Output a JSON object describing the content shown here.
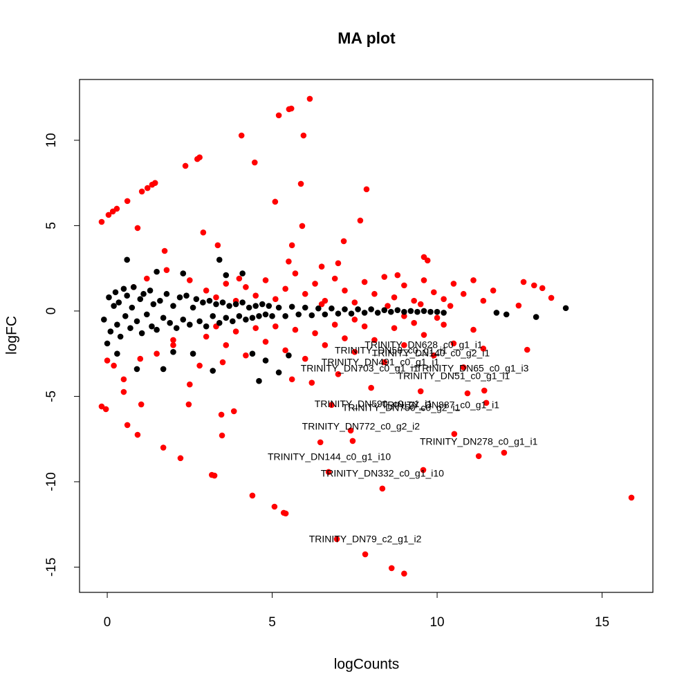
{
  "chart_data": {
    "type": "scatter",
    "title": "MA plot",
    "x_label": "logCounts",
    "y_label": "logFC",
    "xlim": [
      -0.84,
      16.54
    ],
    "ylim": [
      -16.48,
      13.56
    ],
    "xticks": [
      0,
      5,
      10,
      15
    ],
    "yticks": [
      -15,
      -10,
      -5,
      0,
      5,
      10
    ],
    "series": [
      {
        "color": "#ff0000",
        "x": [
          3.0,
          3.3,
          3.6,
          3.9,
          4.2,
          4.5,
          4.8,
          5.1,
          5.4,
          5.7,
          6.0,
          6.3,
          6.6,
          6.9,
          7.2,
          7.5,
          7.8,
          8.1,
          8.4,
          8.7,
          9.0,
          9.3,
          9.6,
          9.9,
          10.2,
          10.5,
          10.8,
          11.1,
          11.4,
          11.7,
          7.0,
          6.5,
          8.8,
          5.5,
          4.0,
          3.0,
          3.3,
          3.6,
          3.9,
          4.2,
          4.5,
          4.8,
          5.1,
          5.4,
          5.7,
          6.0,
          6.3,
          6.6,
          6.9,
          7.2,
          7.5,
          7.8,
          8.1,
          8.4,
          8.7,
          9.0,
          9.3,
          9.6,
          9.9,
          10.2,
          10.5,
          10.8,
          11.1,
          11.4,
          6.2,
          7.0,
          5.6,
          8.0,
          6.8,
          9.5,
          2.0,
          1.0,
          0.2,
          0.5,
          2.5,
          1.5,
          3.5,
          0.0,
          2.8,
          1.2,
          2.5,
          0.8,
          1.8,
          2.0,
          8.5,
          9.0,
          9.5,
          10.0,
          10.4,
          7.5,
          6.5,
          -0.17,
          0.04,
          0.17,
          0.29,
          0.61,
          1.05,
          1.22,
          1.36,
          1.45,
          0.92,
          1.74,
          2.37,
          2.73,
          2.8,
          2.91,
          4.07,
          4.47,
          5.2,
          5.51,
          5.58,
          6.14,
          5.95,
          5.87,
          5.09,
          7.86,
          7.67,
          5.91,
          7.17,
          5.6,
          3.35,
          -0.17,
          -0.04,
          0.61,
          0.92,
          1.7,
          2.22,
          3.17,
          3.25,
          4.4,
          5.07,
          5.35,
          5.41,
          6.96,
          7.82,
          8.62,
          9.0,
          8.34,
          15.89,
          9.58,
          11.26,
          12.03,
          10.52,
          6.71,
          6.46,
          7.38,
          7.44,
          3.48,
          3.46,
          3.84,
          2.47,
          1.03,
          0.5,
          11.49,
          10.92,
          12.73,
          11.43,
          13.46,
          13.19,
          12.62,
          12.94,
          12.47,
          9.71,
          9.6
        ],
        "values": [
          1.2,
          0.8,
          1.6,
          0.6,
          1.4,
          0.9,
          1.8,
          0.7,
          1.3,
          2.2,
          1.0,
          1.6,
          0.6,
          1.9,
          1.2,
          0.5,
          1.7,
          1.0,
          2.0,
          0.8,
          1.5,
          0.6,
          1.8,
          1.1,
          0.7,
          1.6,
          1.0,
          1.8,
          0.6,
          1.2,
          2.8,
          2.6,
          2.1,
          2.9,
          1.9,
          -1.5,
          -0.9,
          -2.0,
          -1.2,
          -2.6,
          -1.0,
          -1.8,
          -0.9,
          -2.3,
          -1.1,
          -2.8,
          -1.3,
          -2.0,
          -0.8,
          -1.6,
          -2.4,
          -0.9,
          -1.7,
          -3.0,
          -1.0,
          -2.0,
          -0.7,
          -1.4,
          -2.6,
          -0.8,
          -1.9,
          -3.3,
          -1.1,
          -2.2,
          -4.2,
          -3.7,
          -4.0,
          -4.5,
          -5.5,
          -4.7,
          -2.0,
          -2.8,
          -3.2,
          -4.0,
          -4.3,
          -2.5,
          -3.0,
          -2.9,
          -3.2,
          1.9,
          1.8,
          1.4,
          2.4,
          -1.7,
          0.3,
          -0.3,
          0.4,
          -0.4,
          0.3,
          -0.5,
          0.4,
          5.22,
          5.63,
          5.83,
          5.99,
          6.44,
          7.0,
          7.2,
          7.4,
          7.5,
          4.86,
          3.52,
          8.5,
          8.9,
          9.0,
          4.6,
          10.28,
          8.7,
          11.46,
          11.82,
          11.86,
          12.43,
          10.28,
          7.45,
          6.4,
          7.13,
          5.3,
          4.98,
          4.09,
          3.85,
          3.85,
          -5.59,
          -5.75,
          -6.68,
          -7.25,
          -8.0,
          -8.62,
          -9.6,
          -9.64,
          -10.81,
          -11.46,
          -11.82,
          -11.86,
          -13.36,
          -14.25,
          -15.06,
          -15.38,
          -10.4,
          -10.93,
          -9.31,
          -8.5,
          -8.3,
          -7.2,
          -9.43,
          -7.69,
          -7.0,
          -7.61,
          -7.29,
          -6.07,
          -5.87,
          -5.47,
          -5.47,
          -4.74,
          -5.38,
          -4.82,
          -2.27,
          -4.66,
          0.77,
          1.34,
          1.7,
          1.5,
          0.32,
          2.96,
          3.16
        ]
      },
      {
        "color": "#000000",
        "x": [
          -0.1,
          0.05,
          0.1,
          0.2,
          0.25,
          0.3,
          0.35,
          0.4,
          0.5,
          0.55,
          0.6,
          0.7,
          0.75,
          0.8,
          0.9,
          1.0,
          1.05,
          1.1,
          1.2,
          1.3,
          1.35,
          1.4,
          1.5,
          1.6,
          1.7,
          1.8,
          1.9,
          2.0,
          2.1,
          2.2,
          2.3,
          2.4,
          2.5,
          2.6,
          2.7,
          2.8,
          2.9,
          3.0,
          3.1,
          3.2,
          3.3,
          3.4,
          3.5,
          3.6,
          3.7,
          3.8,
          3.9,
          4.0,
          4.1,
          4.2,
          4.3,
          4.4,
          4.5,
          4.6,
          4.7,
          4.8,
          4.9,
          5.0,
          5.2,
          5.4,
          5.6,
          5.8,
          6.0,
          6.2,
          6.4,
          6.6,
          6.8,
          7.0,
          7.2,
          7.4,
          7.6,
          7.8,
          8.0,
          8.2,
          8.4,
          8.6,
          8.8,
          9.0,
          9.2,
          9.4,
          9.6,
          9.8,
          10.0,
          10.2,
          0.6,
          3.4,
          2.3,
          4.1,
          13.9,
          13.0,
          12.1,
          11.8,
          4.8,
          5.2,
          4.6,
          3.2,
          1.7,
          0.9,
          2.6,
          1.5,
          2.0,
          3.6,
          4.4,
          5.5,
          0.0,
          0.3
        ],
        "values": [
          -0.5,
          0.8,
          -1.2,
          0.3,
          1.1,
          -0.8,
          0.5,
          -1.5,
          1.3,
          -0.3,
          0.9,
          -1.0,
          0.2,
          1.4,
          -0.6,
          0.7,
          -1.3,
          1.0,
          -0.2,
          1.2,
          -0.9,
          0.4,
          -1.1,
          0.6,
          -0.4,
          1.0,
          -0.7,
          0.3,
          -1.0,
          0.8,
          -0.5,
          0.9,
          -0.8,
          0.2,
          0.7,
          -0.6,
          0.5,
          -0.9,
          0.6,
          -0.3,
          0.4,
          -0.7,
          0.5,
          -0.4,
          0.3,
          -0.6,
          0.4,
          -0.3,
          0.5,
          -0.5,
          0.2,
          -0.4,
          0.3,
          -0.3,
          0.4,
          -0.2,
          0.3,
          -0.3,
          0.2,
          -0.3,
          0.25,
          -0.2,
          0.2,
          -0.25,
          0.15,
          -0.2,
          0.15,
          -0.15,
          0.1,
          -0.15,
          0.1,
          -0.1,
          0.1,
          -0.1,
          0.05,
          -0.05,
          0.05,
          -0.05,
          0.0,
          -0.05,
          0.0,
          -0.05,
          -0.05,
          -0.1,
          3.0,
          3.0,
          2.2,
          2.2,
          0.17,
          -0.35,
          -0.2,
          -0.1,
          -2.9,
          -3.6,
          -4.1,
          -3.5,
          -3.4,
          -3.4,
          -2.5,
          2.3,
          -2.4,
          2.1,
          -2.5,
          -2.6,
          -1.9,
          -2.5
        ]
      }
    ],
    "annotations": [
      {
        "text": "TRINITY_DN628_c0_g1_i1",
        "x": 9.59,
        "y": -2.02
      },
      {
        "text": "TRINITY_DN140_c0_g2_i1",
        "x": 9.81,
        "y": -2.51
      },
      {
        "text": "TRINITY_DN58_c0_g1_i1",
        "x": 8.6,
        "y": -2.35
      },
      {
        "text": "TRINITY_DN491_c0_g1_i1",
        "x": 8.28,
        "y": -3.04
      },
      {
        "text": "TRINITY_DN703_c0_g1_i1",
        "x": 7.65,
        "y": -3.4
      },
      {
        "text": "TRINITY_DN65_c0_g1_i3",
        "x": 11.07,
        "y": -3.4
      },
      {
        "text": "TRINITY_DN51_c0_g1_i1",
        "x": 10.5,
        "y": -3.85
      },
      {
        "text": "TRINITY_DN590_c0_g1_i1",
        "x": 8.07,
        "y": -5.47
      },
      {
        "text": "TRINITY_DN887_c0_g1_i1",
        "x": 10.1,
        "y": -5.55
      },
      {
        "text": "TRINITY_DN750_c0_g2_i1",
        "x": 8.91,
        "y": -5.71
      },
      {
        "text": "TRINITY_DN772_c0_g2_i2",
        "x": 7.69,
        "y": -6.8
      },
      {
        "text": "TRINITY_DN278_c0_g1_i1",
        "x": 11.26,
        "y": -7.69
      },
      {
        "text": "TRINITY_DN144_c0_g1_i10",
        "x": 6.73,
        "y": -8.58
      },
      {
        "text": "TRINITY_DN332_c0_g1_i10",
        "x": 8.34,
        "y": -9.55
      },
      {
        "text": "TRINITY_DN79_c2_g1_i2",
        "x": 7.82,
        "y": -13.4
      }
    ]
  }
}
